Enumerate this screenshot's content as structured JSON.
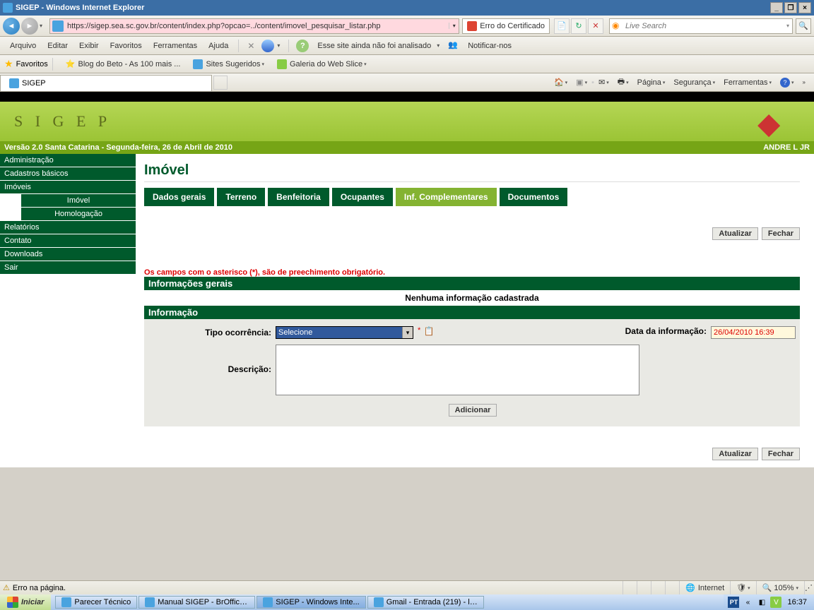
{
  "titlebar": {
    "title": "SIGEP - Windows Internet Explorer"
  },
  "nav": {
    "url": "https://sigep.sea.sc.gov.br/content/index.php?opcao=../content/imovel_pesquisar_listar.php",
    "cert_error": "Erro do Certificado",
    "search_placeholder": "Live Search"
  },
  "menus": {
    "arquivo": "Arquivo",
    "editar": "Editar",
    "exibir": "Exibir",
    "favoritos": "Favoritos",
    "ferramentas": "Ferramentas",
    "ajuda": "Ajuda",
    "wot_msg": "Esse site ainda não foi analisado",
    "notificar": "Notificar-nos"
  },
  "favbar": {
    "label": "Favoritos",
    "beto": "Blog do Beto - As 100 mais ...",
    "sugeridos": "Sites Sugeridos",
    "webslice": "Galeria do Web Slice"
  },
  "tabbar": {
    "tab": "SIGEP",
    "pagina": "Página",
    "seguranca": "Segurança",
    "ferramentas": "Ferramentas"
  },
  "banner": {
    "logo": "S I G E P"
  },
  "version": {
    "left": "Versão 2.0    Santa Catarina - Segunda-feira, 26 de Abril de 2010",
    "right": "ANDRE L JR"
  },
  "sidebar": {
    "items": [
      "Administração",
      "Cadastros básicos",
      "Imóveis"
    ],
    "subs": [
      "Imóvel",
      "Homologação"
    ],
    "items2": [
      "Relatórios",
      "Contato",
      "Downloads",
      "Sair"
    ]
  },
  "content": {
    "title": "Imóvel",
    "tabs": [
      "Dados gerais",
      "Terreno",
      "Benfeitoria",
      "Ocupantes",
      "Inf. Complementares",
      "Documentos"
    ],
    "active_tab": 4,
    "actions": {
      "atualizar": "Atualizar",
      "fechar": "Fechar"
    },
    "required": "Os campos com o asterisco (*), são de preechimento obrigatório.",
    "sec_info_gerais": "Informações gerais",
    "none": "Nenhuma informação cadastrada",
    "sec_info": "Informação",
    "label_tipo": "Tipo ocorrência:",
    "select_val": "Selecione",
    "label_data": "Data da informação:",
    "data_val": "26/04/2010 16:39",
    "label_desc": "Descrição:",
    "adicionar": "Adicionar"
  },
  "status": {
    "err": "Erro na página.",
    "zone": "Internet",
    "zoom": "105%"
  },
  "taskbar": {
    "iniciar": "Iniciar",
    "items": [
      "Parecer Técnico",
      "Manual SIGEP - BrOffice....",
      "SIGEP - Windows Inte...",
      "Gmail - Entrada (219) - la..."
    ],
    "active": 2,
    "lang": "PT",
    "clock": "16:37"
  }
}
